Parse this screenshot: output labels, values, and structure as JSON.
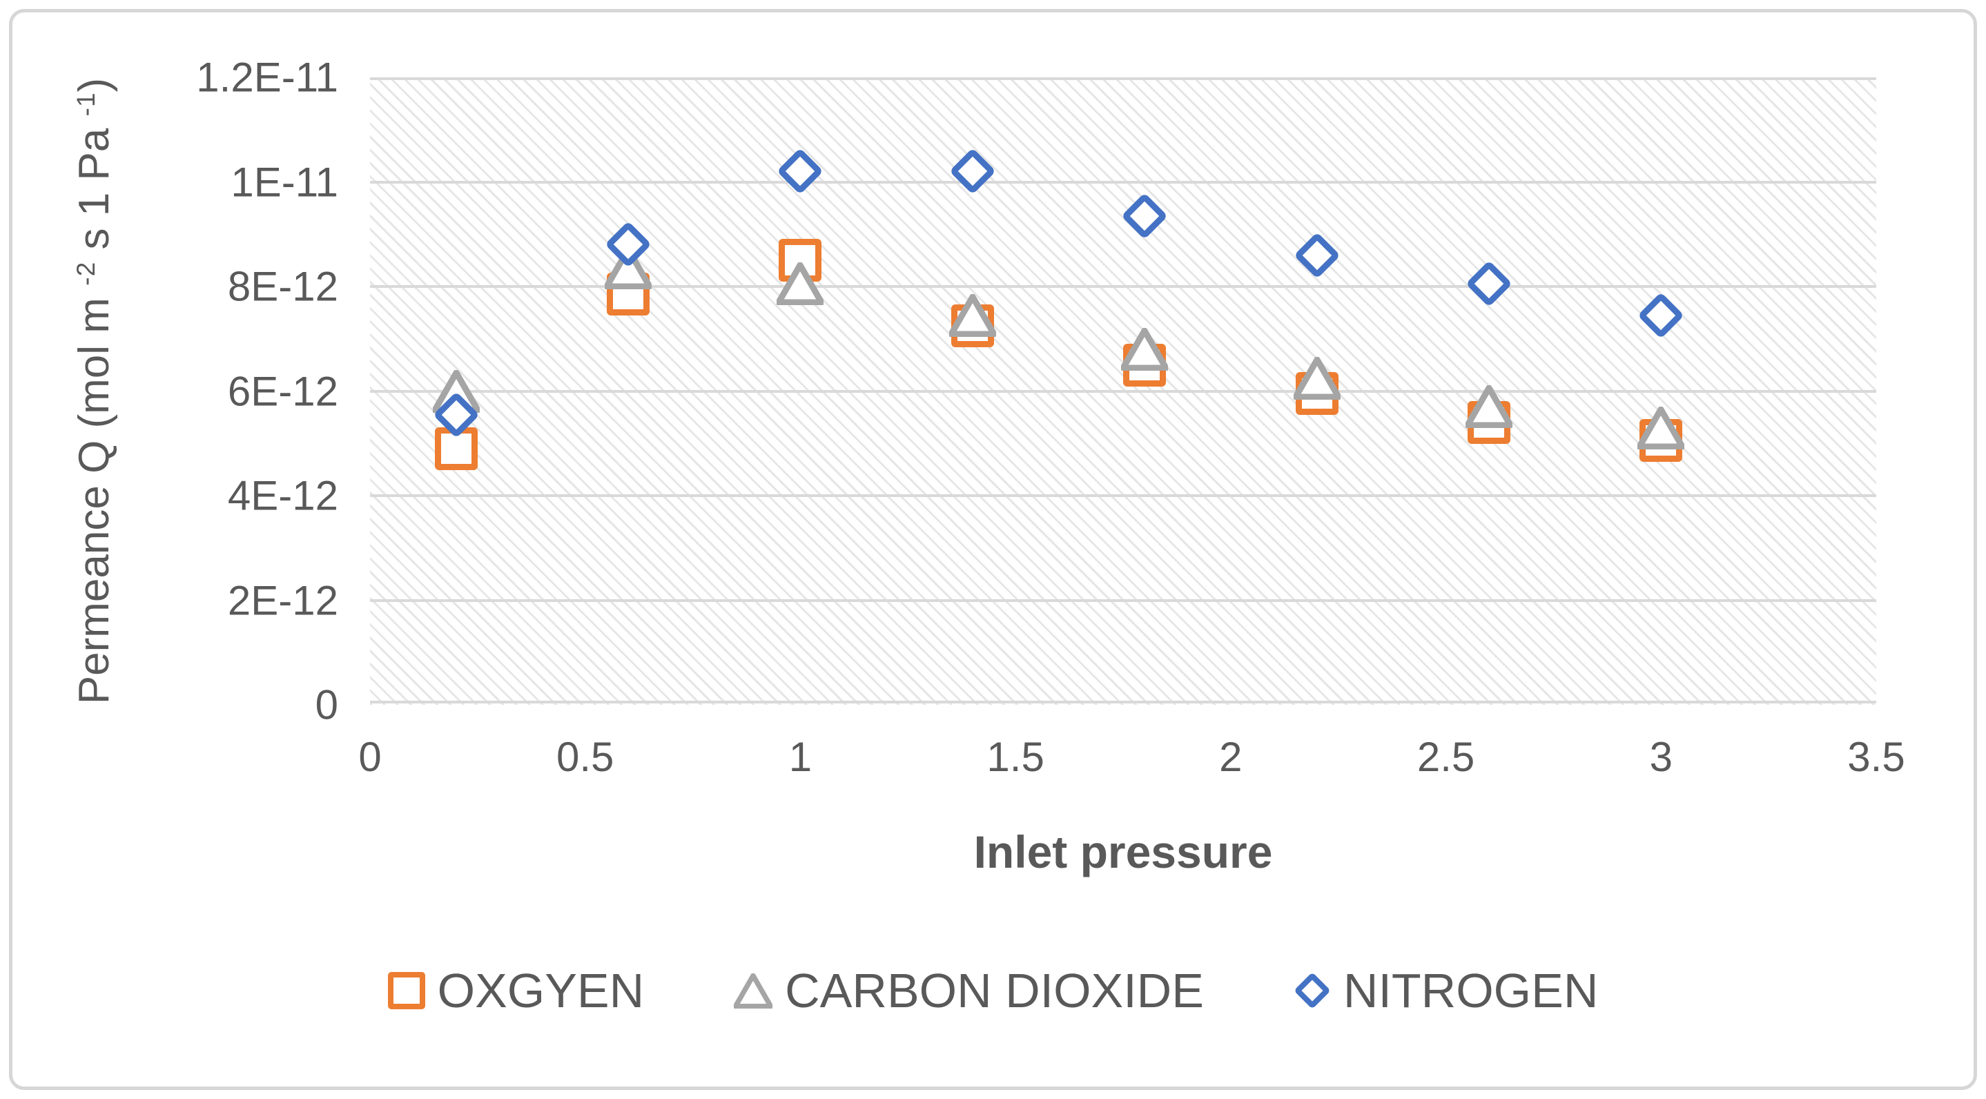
{
  "chart_data": {
    "type": "scatter",
    "title": "",
    "xlabel": "Inlet pressure",
    "ylabel": "Permeance Q (mol m⁻² s 1 Pa⁻¹)",
    "ylabel_segments": [
      {
        "text": "Permeance Q (mol m ",
        "sup": false
      },
      {
        "text": "-2",
        "sup": true
      },
      {
        "text": " s 1 Pa ",
        "sup": false
      },
      {
        "text": "-1",
        "sup": true
      },
      {
        "text": ")",
        "sup": false
      }
    ],
    "xlim": [
      0,
      3.5
    ],
    "ylim": [
      0,
      1.2e-11
    ],
    "x_tick_labels": [
      "0",
      "0.5",
      "1",
      "1.5",
      "2",
      "2.5",
      "3",
      "3.5"
    ],
    "y_tick_labels_top_to_bottom": [
      "1.2E-11",
      "1E-11",
      "8E-12",
      "6E-12",
      "4E-12",
      "2E-12",
      "0"
    ],
    "grid": "horizontal gridlines on, hatched plot background",
    "legend_position": "bottom",
    "x": [
      0.2,
      0.6,
      1.0,
      1.4,
      1.8,
      2.2,
      2.6,
      3.0
    ],
    "series": [
      {
        "name": "OXGYEN",
        "marker": "square",
        "color": "#ED7D31",
        "values": [
          4.9e-12,
          7.85e-12,
          8.5e-12,
          7.25e-12,
          6.5e-12,
          5.95e-12,
          5.4e-12,
          5.05e-12
        ]
      },
      {
        "name": "CARBON DIOXIDE",
        "marker": "triangle",
        "color": "#A5A5A5",
        "values": [
          6e-12,
          8.35e-12,
          8.05e-12,
          7.45e-12,
          6.8e-12,
          6.25e-12,
          5.7e-12,
          5.3e-12
        ]
      },
      {
        "name": "NITROGEN",
        "marker": "diamond",
        "color": "#4472C4",
        "values": [
          5.55e-12,
          8.8e-12,
          1.02e-11,
          1.02e-11,
          9.35e-12,
          8.6e-12,
          8.05e-12,
          7.45e-12
        ]
      }
    ],
    "colors": {
      "gridline": "#D9D9D9",
      "axis_text": "#595959",
      "frame_border": "#D6D6D6",
      "background": "#FFFFFF"
    }
  }
}
